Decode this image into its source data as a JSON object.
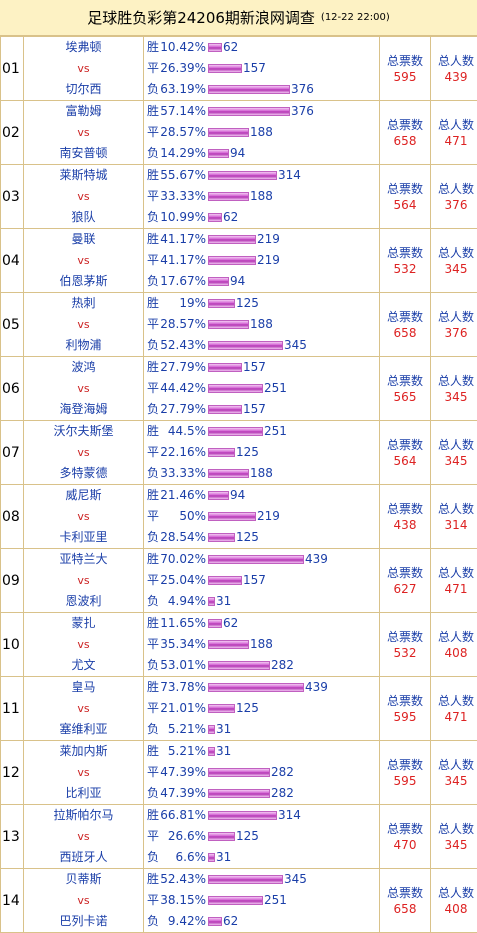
{
  "header": {
    "title": "足球胜负彩第24206期新浪网调查",
    "date": "(12-22 22:00)"
  },
  "labels": {
    "win": "胜",
    "draw": "平",
    "lose": "负",
    "vs": "vs",
    "total_votes": "总票数",
    "total_people": "总人数"
  },
  "colors": {
    "team_blue": "#1a3ea8",
    "value_red": "#dd2222",
    "bar_pink": "#d060d0",
    "header_bg": "#fdf2c4"
  },
  "bar_scale_max": 439,
  "rows": [
    {
      "num": "01",
      "home": "埃弗顿",
      "away": "切尔西",
      "win_pct": "10.42%",
      "win": "62",
      "draw_pct": "26.39%",
      "draw": "157",
      "lose_pct": "63.19%",
      "lose": "376",
      "votes": "595",
      "people": "439"
    },
    {
      "num": "02",
      "home": "富勒姆",
      "away": "南安普顿",
      "win_pct": "57.14%",
      "win": "376",
      "draw_pct": "28.57%",
      "draw": "188",
      "lose_pct": "14.29%",
      "lose": "94",
      "votes": "658",
      "people": "471"
    },
    {
      "num": "03",
      "home": "莱斯特城",
      "away": "狼队",
      "win_pct": "55.67%",
      "win": "314",
      "draw_pct": "33.33%",
      "draw": "188",
      "lose_pct": "10.99%",
      "lose": "62",
      "votes": "564",
      "people": "376"
    },
    {
      "num": "04",
      "home": "曼联",
      "away": "伯恩茅斯",
      "win_pct": "41.17%",
      "win": "219",
      "draw_pct": "41.17%",
      "draw": "219",
      "lose_pct": "17.67%",
      "lose": "94",
      "votes": "532",
      "people": "345"
    },
    {
      "num": "05",
      "home": "热刺",
      "away": "利物浦",
      "win_pct": "19%",
      "win": "125",
      "draw_pct": "28.57%",
      "draw": "188",
      "lose_pct": "52.43%",
      "lose": "345",
      "votes": "658",
      "people": "376"
    },
    {
      "num": "06",
      "home": "波鸿",
      "away": "海登海姆",
      "win_pct": "27.79%",
      "win": "157",
      "draw_pct": "44.42%",
      "draw": "251",
      "lose_pct": "27.79%",
      "lose": "157",
      "votes": "565",
      "people": "345"
    },
    {
      "num": "07",
      "home": "沃尔夫斯堡",
      "away": "多特蒙德",
      "win_pct": "44.5%",
      "win": "251",
      "draw_pct": "22.16%",
      "draw": "125",
      "lose_pct": "33.33%",
      "lose": "188",
      "votes": "564",
      "people": "345"
    },
    {
      "num": "08",
      "home": "威尼斯",
      "away": "卡利亚里",
      "win_pct": "21.46%",
      "win": "94",
      "draw_pct": "50%",
      "draw": "219",
      "lose_pct": "28.54%",
      "lose": "125",
      "votes": "438",
      "people": "314"
    },
    {
      "num": "09",
      "home": "亚特兰大",
      "away": "恩波利",
      "win_pct": "70.02%",
      "win": "439",
      "draw_pct": "25.04%",
      "draw": "157",
      "lose_pct": "4.94%",
      "lose": "31",
      "votes": "627",
      "people": "471"
    },
    {
      "num": "10",
      "home": "蒙扎",
      "away": "尤文",
      "win_pct": "11.65%",
      "win": "62",
      "draw_pct": "35.34%",
      "draw": "188",
      "lose_pct": "53.01%",
      "lose": "282",
      "votes": "532",
      "people": "408"
    },
    {
      "num": "11",
      "home": "皇马",
      "away": "塞维利亚",
      "win_pct": "73.78%",
      "win": "439",
      "draw_pct": "21.01%",
      "draw": "125",
      "lose_pct": "5.21%",
      "lose": "31",
      "votes": "595",
      "people": "471"
    },
    {
      "num": "12",
      "home": "莱加内斯",
      "away": "比利亚",
      "win_pct": "5.21%",
      "win": "31",
      "draw_pct": "47.39%",
      "draw": "282",
      "lose_pct": "47.39%",
      "lose": "282",
      "votes": "595",
      "people": "345"
    },
    {
      "num": "13",
      "home": "拉斯帕尔马",
      "away": "西班牙人",
      "win_pct": "66.81%",
      "win": "314",
      "draw_pct": "26.6%",
      "draw": "125",
      "lose_pct": "6.6%",
      "lose": "31",
      "votes": "470",
      "people": "345"
    },
    {
      "num": "14",
      "home": "贝蒂斯",
      "away": "巴列卡诺",
      "win_pct": "52.43%",
      "win": "345",
      "draw_pct": "38.15%",
      "draw": "251",
      "lose_pct": "9.42%",
      "lose": "62",
      "votes": "658",
      "people": "408"
    }
  ]
}
